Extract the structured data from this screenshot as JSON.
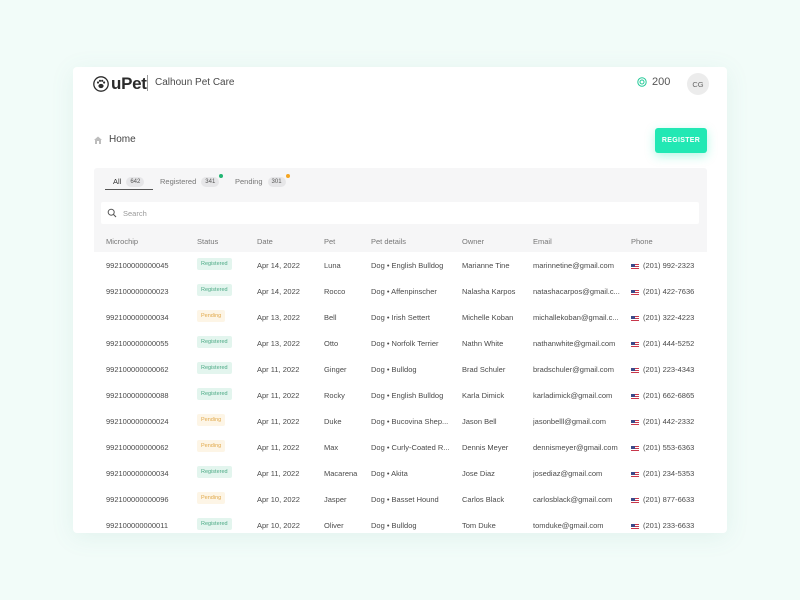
{
  "app": {
    "logo_text": "uPet",
    "org_name": "Calhoun Pet Care",
    "credits": "200",
    "avatar_initials": "CG"
  },
  "breadcrumb": {
    "label": "Home"
  },
  "actions": {
    "register_label": "REGISTER"
  },
  "tabs": [
    {
      "label": "All",
      "count": "642",
      "active": true
    },
    {
      "label": "Registered",
      "count": "341",
      "dot_color": "#22b573"
    },
    {
      "label": "Pending",
      "count": "301",
      "dot_color": "#f5a623"
    }
  ],
  "search": {
    "placeholder": "Search"
  },
  "table": {
    "columns": [
      "Microchip",
      "Status",
      "Date",
      "Pet",
      "Pet details",
      "Owner",
      "Email",
      "Phone"
    ],
    "rows": [
      {
        "microchip": "992100000000045",
        "status": "Registered",
        "date": "Apr 14, 2022",
        "pet": "Luna",
        "details": "Dog • English Bulldog",
        "owner": "Marianne Tine",
        "email": "marinnetine@gmail.com",
        "phone": "(201) 992-2323"
      },
      {
        "microchip": "992100000000023",
        "status": "Registered",
        "date": "Apr 14, 2022",
        "pet": "Rocco",
        "details": "Dog • Affenpinscher",
        "owner": "Nalasha Karpos",
        "email": "natashacarpos@gmail.c...",
        "phone": "(201) 422-7636"
      },
      {
        "microchip": "992100000000034",
        "status": "Pending",
        "date": "Apr 13, 2022",
        "pet": "Bell",
        "details": "Dog • Irish Settert",
        "owner": "Michelle Koban",
        "email": "michallekoban@gmail.c...",
        "phone": "(201) 322-4223"
      },
      {
        "microchip": "992100000000055",
        "status": "Registered",
        "date": "Apr 13, 2022",
        "pet": "Otto",
        "details": "Dog • Norfolk Terrier",
        "owner": "Nathn White",
        "email": "nathanwhite@gmail.com",
        "phone": "(201) 444-5252"
      },
      {
        "microchip": "992100000000062",
        "status": "Registered",
        "date": "Apr 11, 2022",
        "pet": "Ginger",
        "details": "Dog • Bulldog",
        "owner": "Brad Schuler",
        "email": "bradschuler@gmail.com",
        "phone": "(201) 223-4343"
      },
      {
        "microchip": "992100000000088",
        "status": "Registered",
        "date": "Apr 11, 2022",
        "pet": "Rocky",
        "details": "Dog • English Bulldog",
        "owner": "Karla Dimick",
        "email": "karladimick@gmail.com",
        "phone": "(201) 662-6865"
      },
      {
        "microchip": "992100000000024",
        "status": "Pending",
        "date": "Apr 11, 2022",
        "pet": "Duke",
        "details": "Dog • Bucovina Shep...",
        "owner": "Jason Bell",
        "email": "jasonbelll@gmail.com",
        "phone": "(201) 442-2332"
      },
      {
        "microchip": "992100000000062",
        "status": "Pending",
        "date": "Apr 11, 2022",
        "pet": "Max",
        "details": "Dog • Curly-Coated R...",
        "owner": "Dennis Meyer",
        "email": "dennismeyer@gmail.com",
        "phone": "(201) 553-6363"
      },
      {
        "microchip": "992100000000034",
        "status": "Registered",
        "date": "Apr 11, 2022",
        "pet": "Macarena",
        "details": "Dog • Akita",
        "owner": "Jose Diaz",
        "email": "josediaz@gmail.com",
        "phone": "(201) 234-5353"
      },
      {
        "microchip": "992100000000096",
        "status": "Pending",
        "date": "Apr 10, 2022",
        "pet": "Jasper",
        "details": "Dog • Basset Hound",
        "owner": "Carlos Black",
        "email": "carlosblack@gmail.com",
        "phone": "(201) 877-6633"
      },
      {
        "microchip": "992100000000011",
        "status": "Registered",
        "date": "Apr 10, 2022",
        "pet": "Oliver",
        "details": "Dog • Bulldog",
        "owner": "Tom Duke",
        "email": "tomduke@gmail.com",
        "phone": "(201) 233-6633"
      }
    ]
  },
  "colors": {
    "accent": "#22e8b4",
    "registered_bg": "#e3f5ee",
    "registered_text": "#4ca985",
    "pending_bg": "#fdf5e6",
    "pending_text": "#e0a84a"
  },
  "icons": {
    "logo": "paw-icon",
    "credits": "coin-icon",
    "breadcrumb": "home-icon",
    "search": "search-icon",
    "phone_flag": "us-flag-icon"
  }
}
